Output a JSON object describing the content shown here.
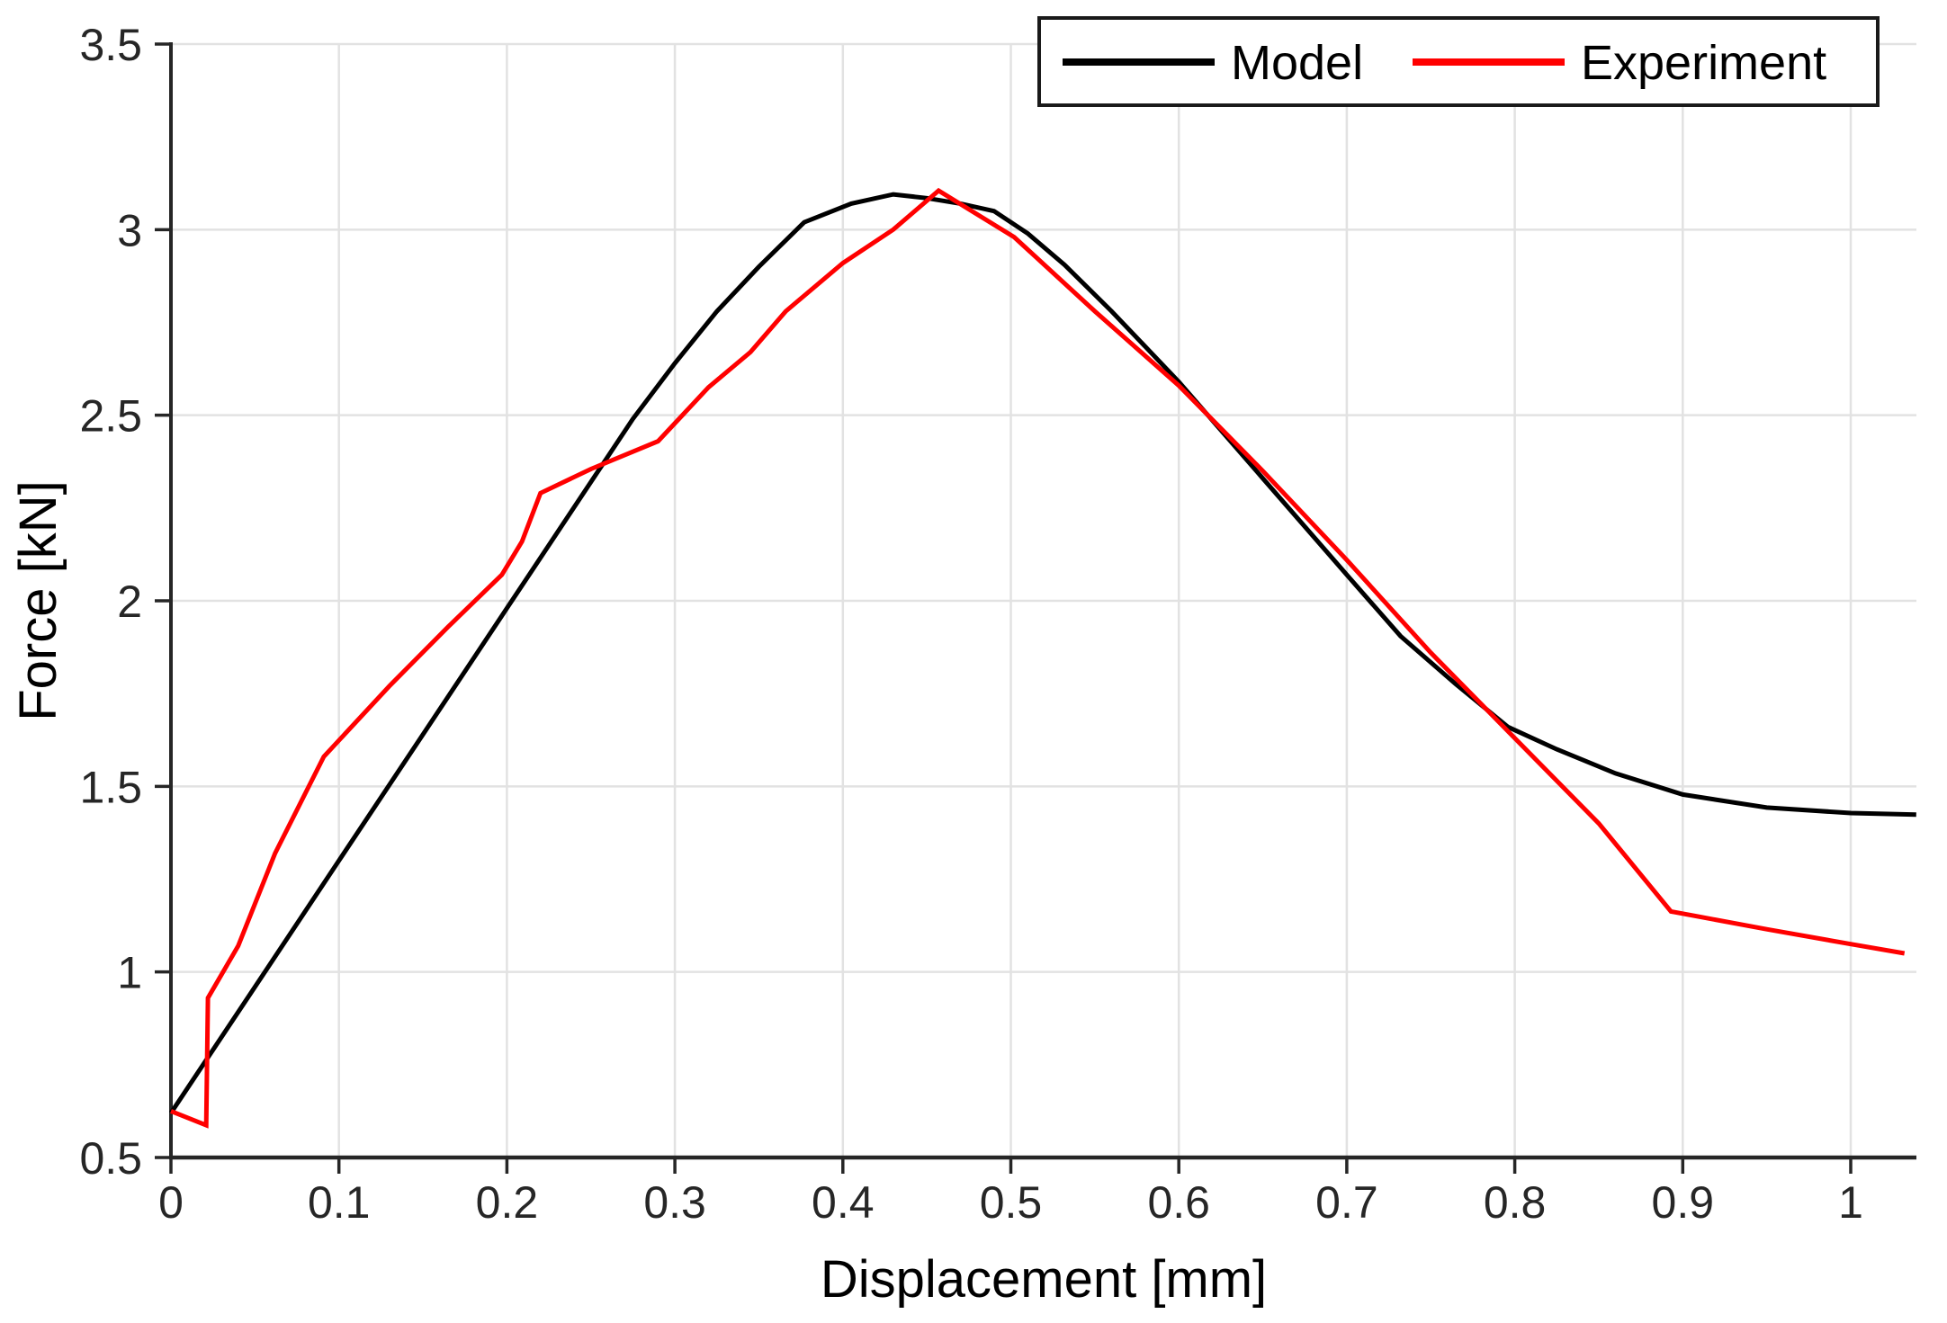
{
  "figure": {
    "background": "#ffffff",
    "axis_color": "#262626",
    "grid_color": "#e2e2e2",
    "tick_label_color": "#262626",
    "label_color": "#000000"
  },
  "legend": {
    "background": "#ffffff",
    "border_color": "#1a1a1a",
    "position": "top-right",
    "entries": [
      {
        "label": "Model",
        "color": "#000000"
      },
      {
        "label": "Experiment",
        "color": "#ff0000"
      }
    ]
  },
  "chart_data": {
    "type": "line",
    "title": "",
    "xlabel": "Displacement [mm]",
    "ylabel": "Force [kN]",
    "xlim": [
      0,
      1.039
    ],
    "ylim": [
      0.5,
      3.5
    ],
    "grid": true,
    "legend_position": "top-right",
    "xticks": {
      "values": [
        0,
        0.1,
        0.2,
        0.3,
        0.4,
        0.5,
        0.6,
        0.7,
        0.8,
        0.9,
        1.0
      ],
      "labels": [
        "0",
        "0.1",
        "0.2",
        "0.3",
        "0.4",
        "0.5",
        "0.6",
        "0.7",
        "0.8",
        "0.9",
        "1"
      ]
    },
    "yticks": {
      "values": [
        0.5,
        1.0,
        1.5,
        2.0,
        2.5,
        3.0,
        3.5
      ],
      "labels": [
        "0.5",
        "1",
        "1.5",
        "2",
        "2.5",
        "3",
        "3.5"
      ]
    },
    "series": [
      {
        "name": "Model",
        "color": "#000000",
        "line_width": 5,
        "points": [
          [
            0,
            0.62
          ],
          [
            0.05,
            0.96
          ],
          [
            0.1,
            1.3
          ],
          [
            0.15,
            1.64
          ],
          [
            0.2,
            1.98
          ],
          [
            0.25,
            2.32
          ],
          [
            0.275,
            2.49
          ],
          [
            0.3,
            2.64
          ],
          [
            0.325,
            2.78
          ],
          [
            0.35,
            2.9
          ],
          [
            0.377,
            3.02
          ],
          [
            0.405,
            3.07
          ],
          [
            0.43,
            3.095
          ],
          [
            0.45,
            3.085
          ],
          [
            0.47,
            3.07
          ],
          [
            0.49,
            3.05
          ],
          [
            0.51,
            2.99
          ],
          [
            0.532,
            2.905
          ],
          [
            0.56,
            2.78
          ],
          [
            0.6,
            2.59
          ],
          [
            0.65,
            2.33
          ],
          [
            0.7,
            2.07
          ],
          [
            0.732,
            1.905
          ],
          [
            0.765,
            1.775
          ],
          [
            0.796,
            1.66
          ],
          [
            0.825,
            1.6
          ],
          [
            0.86,
            1.535
          ],
          [
            0.9,
            1.478
          ],
          [
            0.95,
            1.443
          ],
          [
            1.0,
            1.428
          ],
          [
            1.039,
            1.424
          ]
        ]
      },
      {
        "name": "Experiment",
        "color": "#ff0000",
        "line_width": 5,
        "points": [
          [
            0,
            0.625
          ],
          [
            0.021,
            0.587
          ],
          [
            0.022,
            0.93
          ],
          [
            0.04,
            1.07
          ],
          [
            0.062,
            1.32
          ],
          [
            0.091,
            1.58
          ],
          [
            0.13,
            1.77
          ],
          [
            0.165,
            1.93
          ],
          [
            0.197,
            2.07
          ],
          [
            0.209,
            2.16
          ],
          [
            0.22,
            2.29
          ],
          [
            0.25,
            2.355
          ],
          [
            0.29,
            2.43
          ],
          [
            0.32,
            2.575
          ],
          [
            0.345,
            2.67
          ],
          [
            0.366,
            2.78
          ],
          [
            0.4,
            2.91
          ],
          [
            0.43,
            3.0
          ],
          [
            0.457,
            3.105
          ],
          [
            0.502,
            2.98
          ],
          [
            0.55,
            2.78
          ],
          [
            0.6,
            2.58
          ],
          [
            0.65,
            2.35
          ],
          [
            0.7,
            2.11
          ],
          [
            0.75,
            1.86
          ],
          [
            0.8,
            1.63
          ],
          [
            0.85,
            1.4
          ],
          [
            0.893,
            1.163
          ],
          [
            0.95,
            1.115
          ],
          [
            1.0,
            1.075
          ],
          [
            1.032,
            1.05
          ]
        ]
      }
    ]
  }
}
